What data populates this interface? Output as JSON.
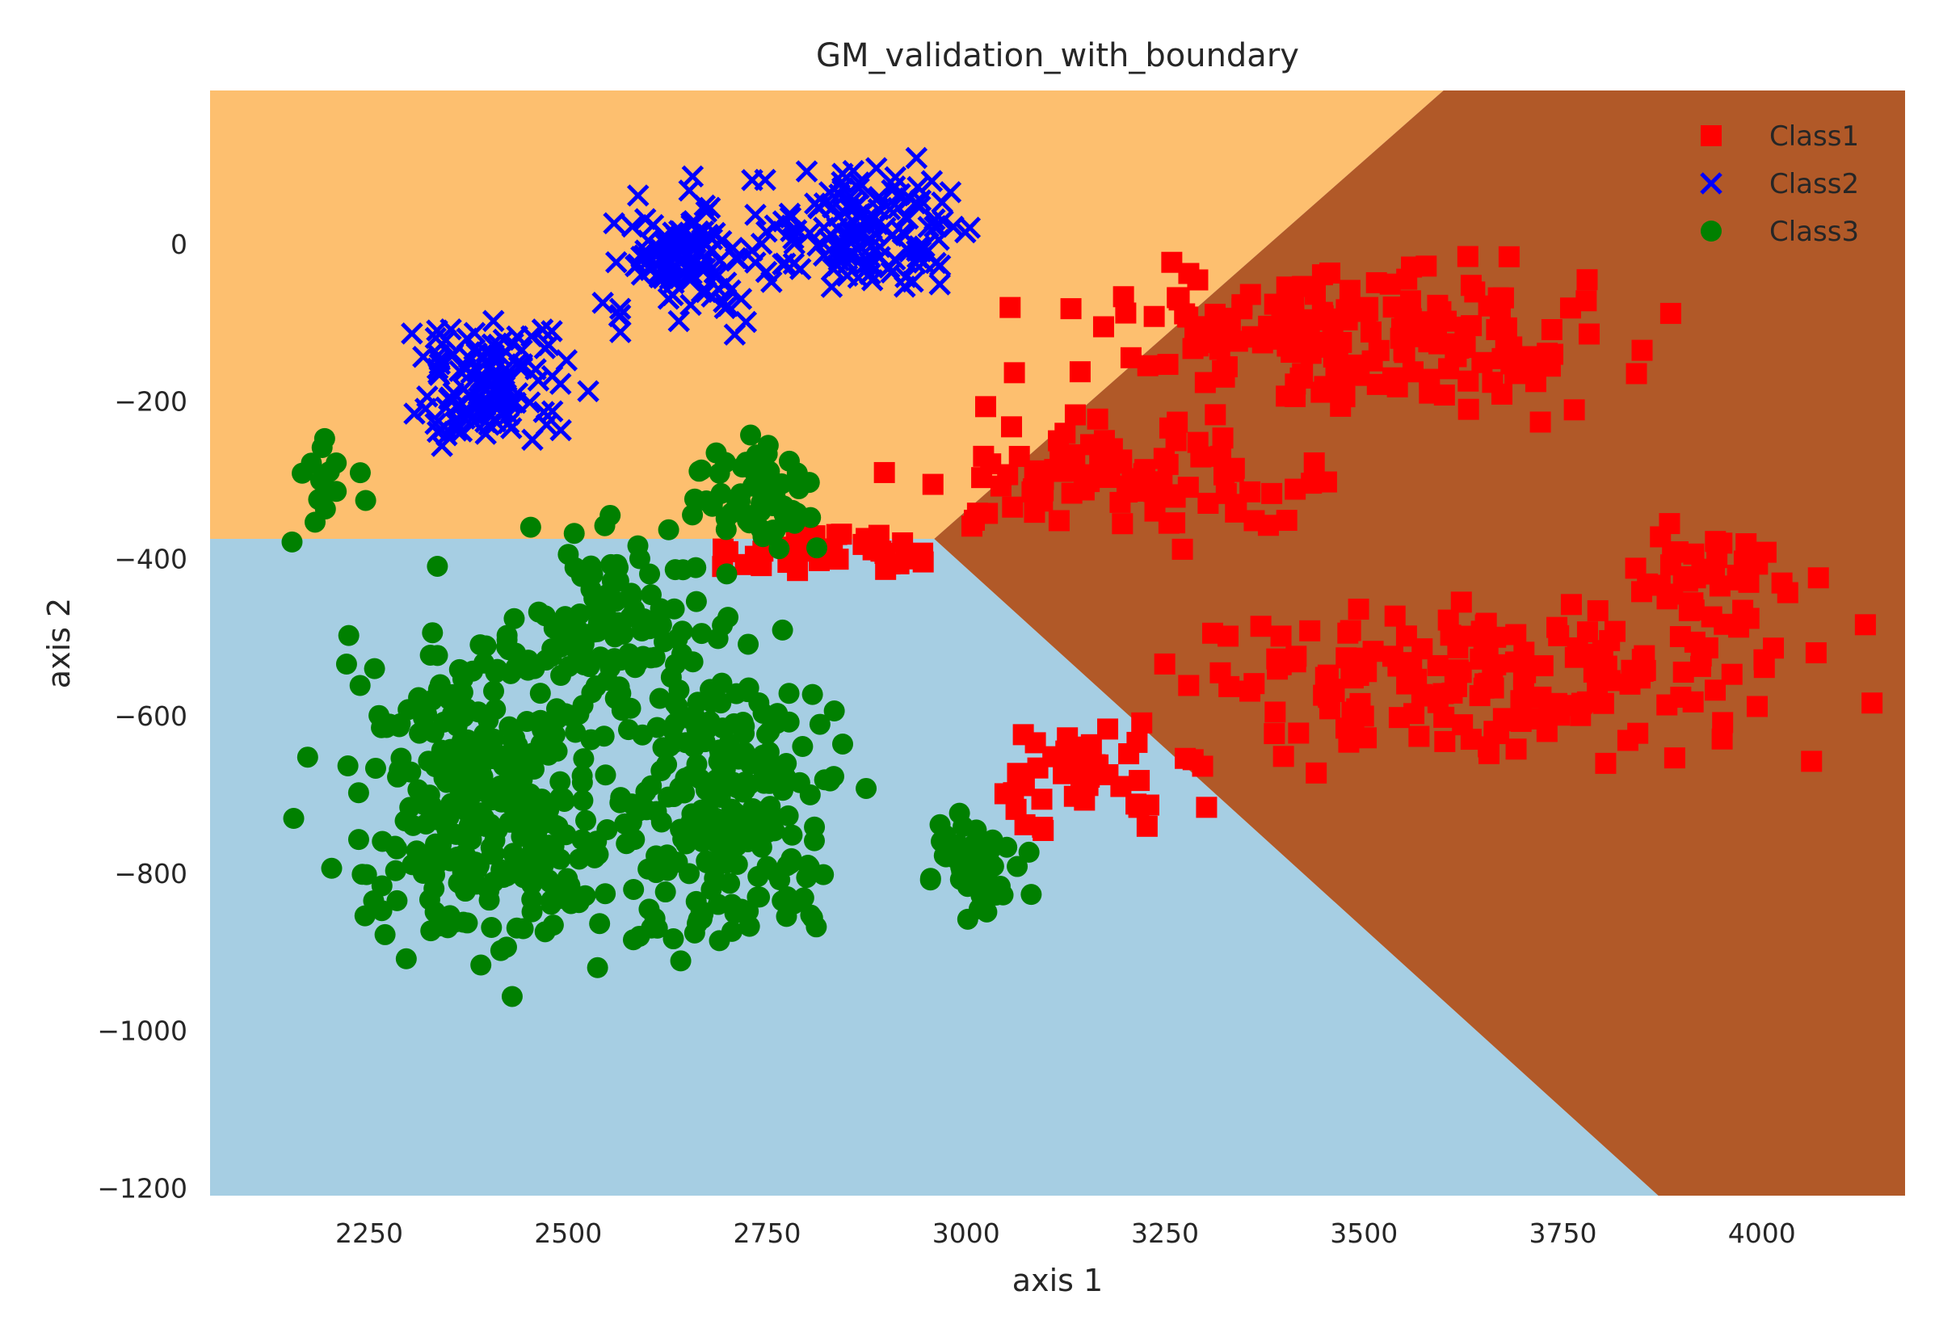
{
  "chart_data": {
    "type": "scatter",
    "title": "GM_validation_with_boundary",
    "xlabel": "axis 1",
    "ylabel": "axis 2",
    "xlim": [
      2050,
      4180
    ],
    "ylim": [
      -1210,
      195
    ],
    "xticks": [
      2250,
      2500,
      2750,
      3000,
      3250,
      3500,
      3750,
      4000
    ],
    "xtick_labels": [
      "2250",
      "2500",
      "2750",
      "3000",
      "3250",
      "3500",
      "3750",
      "4000"
    ],
    "yticks": [
      0,
      -200,
      -400,
      -600,
      -800,
      -1000,
      -1200
    ],
    "ytick_labels": [
      "0",
      "−200",
      "−400",
      "−600",
      "−800",
      "−1000",
      "−1200"
    ],
    "grid": false,
    "legend_position": "upper right",
    "background_regions": [
      {
        "class": "Class1",
        "color": "#b15928",
        "label": "decision region Class1"
      },
      {
        "class": "Class2",
        "color": "#fdbf6f",
        "label": "decision region Class2"
      },
      {
        "class": "Class3",
        "color": "#a6cee3",
        "label": "decision region Class3"
      }
    ],
    "boundaries": {
      "class2_class3_horizontal_y": -375,
      "class2_class1_line": [
        [
          2960,
          -375
        ],
        [
          3600,
          195
        ]
      ],
      "class3_class1_line": [
        [
          2960,
          -375
        ],
        [
          3870,
          -1210
        ]
      ]
    },
    "series": [
      {
        "name": "Class1",
        "marker": "square",
        "color": "#ff0000",
        "clusters": [
          {
            "center": [
              3500,
              -120
            ],
            "spread": [
              280,
              70
            ],
            "n": 170
          },
          {
            "center": [
              3200,
              -300
            ],
            "spread": [
              200,
              60
            ],
            "n": 90
          },
          {
            "center": [
              3640,
              -560
            ],
            "spread": [
              330,
              80
            ],
            "n": 170
          },
          {
            "center": [
              3150,
              -680
            ],
            "spread": [
              110,
              60
            ],
            "n": 45
          },
          {
            "center": [
              2830,
              -390
            ],
            "spread": [
              90,
              25
            ],
            "n": 40
          },
          {
            "center": [
              3950,
              -420
            ],
            "spread": [
              90,
              60
            ],
            "n": 40
          }
        ]
      },
      {
        "name": "Class2",
        "marker": "x",
        "color": "#0000ff",
        "clusters": [
          {
            "center": [
              2400,
              -180
            ],
            "spread": [
              80,
              70
            ],
            "n": 120
          },
          {
            "center": [
              2650,
              -20
            ],
            "spread": [
              80,
              60
            ],
            "n": 120
          },
          {
            "center": [
              2880,
              20
            ],
            "spread": [
              100,
              60
            ],
            "n": 140
          }
        ]
      },
      {
        "name": "Class3",
        "marker": "circle",
        "color": "#008000",
        "clusters": [
          {
            "center": [
              2400,
              -700
            ],
            "spread": [
              150,
              170
            ],
            "n": 330
          },
          {
            "center": [
              2700,
              -700
            ],
            "spread": [
              110,
              160
            ],
            "n": 230
          },
          {
            "center": [
              2550,
              -480
            ],
            "spread": [
              100,
              90
            ],
            "n": 100
          },
          {
            "center": [
              3010,
              -790
            ],
            "spread": [
              40,
              50
            ],
            "n": 50
          },
          {
            "center": [
              2200,
              -300
            ],
            "spread": [
              40,
              60
            ],
            "n": 15
          },
          {
            "center": [
              2740,
              -320
            ],
            "spread": [
              60,
              60
            ],
            "n": 60
          }
        ]
      }
    ]
  }
}
